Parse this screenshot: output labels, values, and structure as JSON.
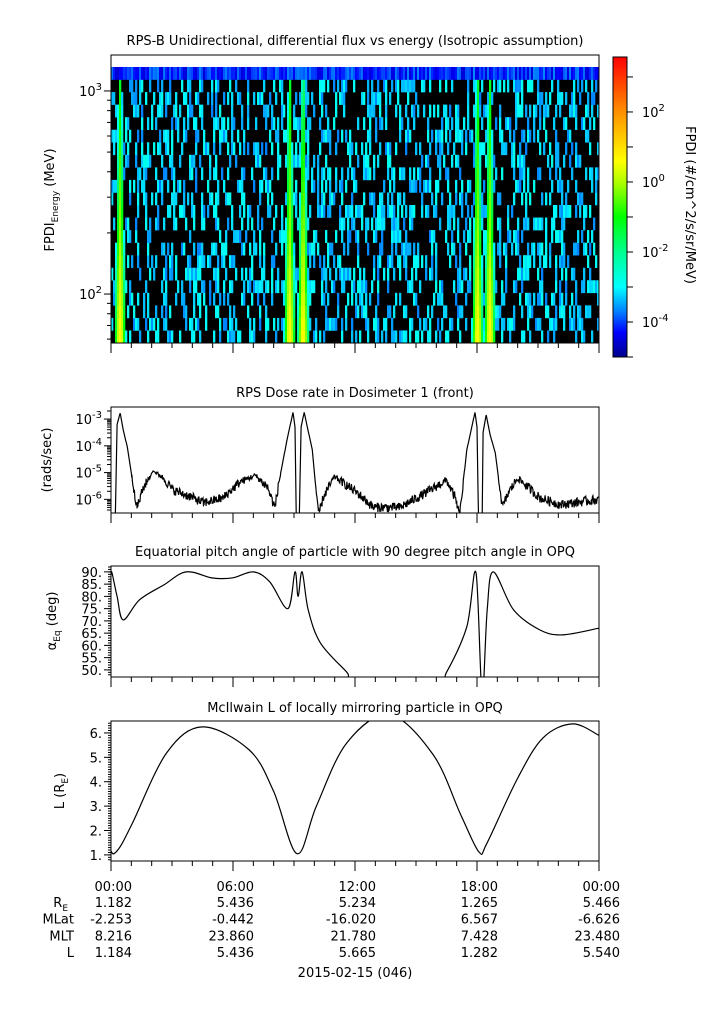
{
  "chart_data": [
    {
      "type": "heatmap",
      "title": "RPS-B  Unidirectional, differential flux vs energy (Isotropic assumption)",
      "ylabel": "FPDI",
      "ylabel_sub": "Energy",
      "ylabel_unit": " (MeV)",
      "yscale": "log",
      "ylim_log10": [
        1.759,
        3.177
      ],
      "yticks": [
        {
          "base": "10",
          "exp": "3",
          "log10": 3
        },
        {
          "base": "10",
          "exp": "2",
          "log10": 2
        }
      ],
      "xlim_hours": [
        0,
        24
      ],
      "energy_range_log10": [
        1.759,
        3.118
      ],
      "energy_bins": 22,
      "time_bins": 244,
      "belt_passes": [
        {
          "center_hr": 0.0,
          "lobe_offset_hr": 0.45
        },
        {
          "center_hr": 9.12,
          "lobe_offset_hr": 0.33
        },
        {
          "center_hr": 18.33,
          "lobe_offset_hr": 0.3
        }
      ],
      "peak_log_flux_low_energy": 0.7,
      "peak_log_flux_slope_per_decade": -1.5,
      "background_log_flux": [
        -3.7,
        -2.8
      ],
      "background_fill_fraction": 0.33,
      "top_channel_log_flux": -4.1,
      "colorbar": {
        "label": "FPDI (#/cm^2/s/sr/MeV)",
        "log_range": [
          -5,
          3.57
        ],
        "ticks": [
          {
            "base": "10",
            "exp": "2",
            "log10": 2
          },
          {
            "base": "10",
            "exp": "0",
            "log10": 0
          },
          {
            "base": "10",
            "exp": "-2",
            "log10": -2
          },
          {
            "base": "10",
            "exp": "-4",
            "log10": -4
          }
        ],
        "colors": [
          {
            "log10": -5,
            "color": "#00008b"
          },
          {
            "log10": -4.3,
            "color": "#0000ff"
          },
          {
            "log10": -3.7,
            "color": "#0080ff"
          },
          {
            "log10": -3,
            "color": "#00ffff"
          },
          {
            "log10": -2,
            "color": "#00ff90"
          },
          {
            "log10": -1,
            "color": "#00ff00"
          },
          {
            "log10": 0,
            "color": "#b0ff00"
          },
          {
            "log10": 0.6,
            "color": "#ffff00"
          },
          {
            "log10": 2,
            "color": "#ff9000"
          },
          {
            "log10": 3.57,
            "color": "#ff0000"
          }
        ]
      }
    },
    {
      "type": "line",
      "title": "RPS  Dose rate in Dosimeter 1 (front)",
      "ylabel": "(rads/sec)",
      "yscale": "log",
      "ylim_log10": [
        -6.51,
        -2.55
      ],
      "yticks": [
        {
          "base": "10",
          "exp": "-3",
          "log10": -3
        },
        {
          "base": "10",
          "exp": "-4",
          "log10": -4
        },
        {
          "base": "10",
          "exp": "-5",
          "log10": -5
        },
        {
          "base": "10",
          "exp": "-6",
          "log10": -6
        }
      ],
      "xlim_hours": [
        0,
        24
      ],
      "points_hour_log10": [
        [
          0,
          -7
        ],
        [
          0.2,
          -7
        ],
        [
          0.3,
          -3.2
        ],
        [
          0.45,
          -2.78
        ],
        [
          0.6,
          -3.4
        ],
        [
          0.8,
          -4.04
        ],
        [
          1.03,
          -5.16
        ],
        [
          1.28,
          -6.3
        ],
        [
          1.6,
          -5.55
        ],
        [
          2.07,
          -4.94
        ],
        [
          2.5,
          -5.15
        ],
        [
          3.05,
          -5.65
        ],
        [
          3.9,
          -5.9
        ],
        [
          4.55,
          -6.13
        ],
        [
          5.5,
          -5.95
        ],
        [
          6.35,
          -5.35
        ],
        [
          7.1,
          -5.1
        ],
        [
          7.7,
          -5.55
        ],
        [
          8.06,
          -6.3
        ],
        [
          8.3,
          -5.2
        ],
        [
          8.65,
          -3.8
        ],
        [
          8.95,
          -2.75
        ],
        [
          9.05,
          -3.3
        ],
        [
          9.12,
          -7
        ],
        [
          9.25,
          -7
        ],
        [
          9.35,
          -3.3
        ],
        [
          9.5,
          -2.75
        ],
        [
          9.9,
          -4.15
        ],
        [
          10.2,
          -6.6
        ],
        [
          10.45,
          -5.9
        ],
        [
          11.0,
          -5.15
        ],
        [
          12.1,
          -5.75
        ],
        [
          12.9,
          -6.3
        ],
        [
          14.2,
          -6.3
        ],
        [
          15.5,
          -5.75
        ],
        [
          16.5,
          -5.28
        ],
        [
          16.9,
          -5.9
        ],
        [
          17.15,
          -6.6
        ],
        [
          17.5,
          -4.15
        ],
        [
          17.9,
          -2.75
        ],
        [
          18.0,
          -3.3
        ],
        [
          18.08,
          -7
        ],
        [
          18.25,
          -7
        ],
        [
          18.3,
          -3.5
        ],
        [
          18.45,
          -2.85
        ],
        [
          18.65,
          -3.6
        ],
        [
          18.9,
          -4.27
        ],
        [
          19.25,
          -6.3
        ],
        [
          19.55,
          -5.75
        ],
        [
          20.0,
          -5.2
        ],
        [
          21.1,
          -5.95
        ],
        [
          22.1,
          -6.2
        ],
        [
          24,
          -6.0
        ]
      ]
    },
    {
      "type": "line",
      "title": "Equatorial pitch angle of particle with 90 degree pitch angle in OPQ",
      "ylabel": "α",
      "ylabel_sub": "Eq",
      "ylabel_unit": " (deg)",
      "ylim": [
        47.1,
        92.4
      ],
      "yticks": [
        "90.",
        "85.",
        "80.",
        "75.",
        "70.",
        "65.",
        "60.",
        "55.",
        "50."
      ],
      "ytick_values": [
        90,
        85,
        80,
        75,
        70,
        65,
        60,
        55,
        50
      ],
      "xlim_hours": [
        0,
        24
      ],
      "points_hour_deg": [
        [
          0,
          88.8
        ],
        [
          0.05,
          89.6
        ],
        [
          0.3,
          80
        ],
        [
          0.6,
          70.4
        ],
        [
          1.4,
          78.6
        ],
        [
          2.6,
          84.7
        ],
        [
          3.7,
          90
        ],
        [
          5.0,
          87.5
        ],
        [
          6.0,
          87.6
        ],
        [
          7.0,
          90
        ],
        [
          7.8,
          86
        ],
        [
          8.7,
          75
        ],
        [
          9.05,
          90
        ],
        [
          9.2,
          80
        ],
        [
          9.4,
          90
        ],
        [
          9.7,
          74.5
        ],
        [
          10.3,
          61
        ],
        [
          11.6,
          49
        ],
        [
          12,
          45
        ],
        [
          16,
          45
        ],
        [
          16.5,
          49
        ],
        [
          17.5,
          67.6
        ],
        [
          17.95,
          89.6
        ],
        [
          18.25,
          40
        ],
        [
          18.5,
          74.5
        ],
        [
          18.8,
          90
        ],
        [
          19.8,
          74.5
        ],
        [
          21.1,
          66.3
        ],
        [
          22.2,
          64.3
        ],
        [
          24,
          67
        ]
      ]
    },
    {
      "type": "line",
      "title": "McIlwain L of locally mirroring particle in OPQ",
      "ylabel": "L (R",
      "ylabel_sub": "E",
      "ylabel_unit": ")",
      "ylim": [
        0.75,
        6.49
      ],
      "yticks": [
        "6.",
        "5.",
        "4.",
        "3.",
        "2.",
        "1."
      ],
      "ytick_values": [
        6,
        5,
        4,
        3,
        2,
        1
      ],
      "xlim_hours": [
        0,
        24
      ],
      "points_hour_L": [
        [
          0,
          1.15
        ],
        [
          0.15,
          1.05
        ],
        [
          0.5,
          1.4
        ],
        [
          1.08,
          2.35
        ],
        [
          2.75,
          5.2
        ],
        [
          4.5,
          6.25
        ],
        [
          6.8,
          5.3
        ],
        [
          8,
          3.6
        ],
        [
          9.15,
          1.05
        ],
        [
          10.1,
          3.0
        ],
        [
          11.6,
          5.6
        ],
        [
          13.7,
          6.75
        ],
        [
          15.85,
          5.1
        ],
        [
          17.2,
          2.65
        ],
        [
          18.1,
          1.12
        ],
        [
          18.5,
          1.5
        ],
        [
          20,
          4.15
        ],
        [
          21.25,
          5.8
        ],
        [
          22.7,
          6.37
        ],
        [
          24,
          5.9
        ]
      ]
    }
  ],
  "ephemeris": {
    "times": [
      "00:00",
      "06:00",
      "12:00",
      "18:00",
      "00:00"
    ],
    "rows": [
      {
        "label": "R",
        "label_sub": "E",
        "values": [
          "1.182",
          "5.436",
          "5.234",
          "1.265",
          "5.466"
        ]
      },
      {
        "label": "MLat",
        "label_sub": "",
        "values": [
          "-2.253",
          "-0.442",
          "-16.020",
          "6.567",
          "-6.626"
        ]
      },
      {
        "label": "MLT",
        "label_sub": "",
        "values": [
          "8.216",
          "23.860",
          "21.780",
          "7.428",
          "23.480"
        ]
      },
      {
        "label": "L",
        "label_sub": "",
        "values": [
          "1.184",
          "5.436",
          "5.665",
          "1.282",
          "5.540"
        ]
      }
    ],
    "date": "2015-02-15 (046)"
  }
}
